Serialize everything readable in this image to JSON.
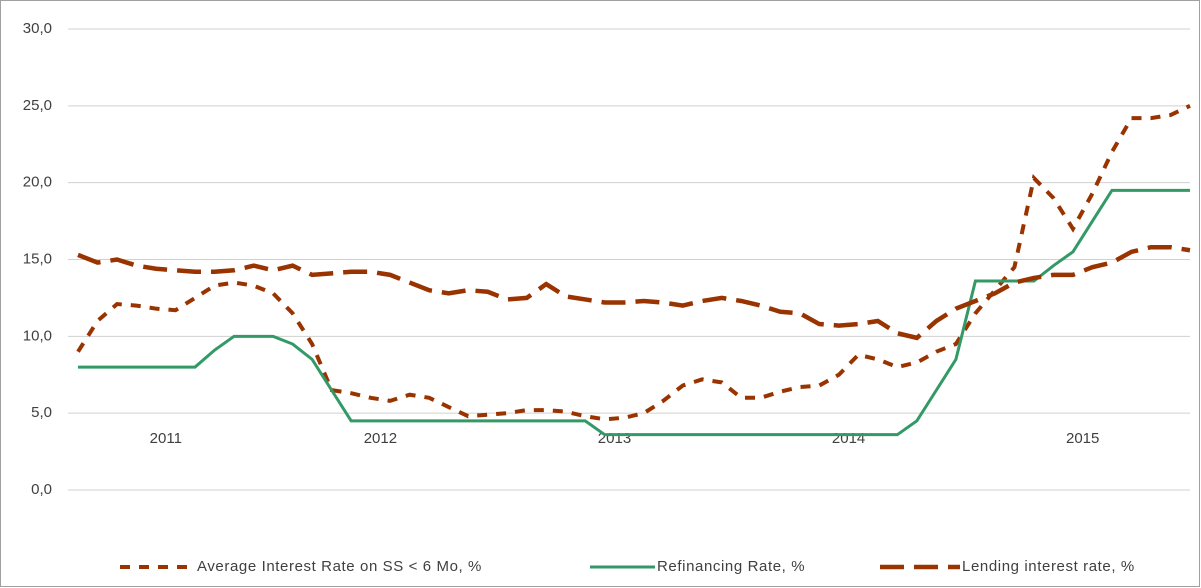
{
  "chart_data": {
    "type": "line",
    "categories": [
      null,
      null,
      null,
      null,
      null,
      null,
      null,
      null,
      null,
      null,
      null,
      null,
      null,
      null,
      null,
      null,
      null,
      null,
      null,
      null,
      null,
      null,
      null,
      null,
      null,
      null,
      null,
      null,
      null,
      null,
      null,
      null,
      null,
      null,
      null,
      null,
      null,
      null,
      null,
      null,
      null,
      null,
      null,
      null,
      null,
      null,
      null,
      null,
      null,
      null,
      null,
      null,
      null,
      null,
      null,
      null,
      null,
      null
    ],
    "x_groups": [
      {
        "label": "2011",
        "size": 10
      },
      {
        "label": "2012",
        "size": 12
      },
      {
        "label": "2013",
        "size": 12
      },
      {
        "label": "2014",
        "size": 12
      },
      {
        "label": "2015",
        "size": 12
      }
    ],
    "ylim": [
      0,
      30
    ],
    "yticks": [
      {
        "value": 0,
        "label": "0,0"
      },
      {
        "value": 5,
        "label": "5,0"
      },
      {
        "value": 10,
        "label": "10,0"
      },
      {
        "value": 15,
        "label": "15,0"
      },
      {
        "value": 20,
        "label": "20,0"
      },
      {
        "value": 25,
        "label": "25,0"
      },
      {
        "value": 30,
        "label": "30,0"
      }
    ],
    "grid": true,
    "legend": "bottom",
    "series": [
      {
        "name": "Average Interest Rate on SS < 6 Mo, %",
        "color": "#993300",
        "dash": "short",
        "values": [
          9.0,
          11.0,
          12.1,
          12.0,
          11.8,
          11.7,
          12.5,
          13.3,
          13.5,
          13.3,
          12.8,
          11.5,
          9.5,
          6.5,
          6.3,
          6.0,
          5.8,
          6.2,
          6.0,
          5.4,
          4.8,
          4.9,
          5.0,
          5.2,
          5.2,
          5.1,
          4.8,
          4.6,
          4.7,
          5.0,
          5.8,
          6.8,
          7.2,
          7.0,
          6.0,
          6.0,
          6.4,
          6.7,
          6.8,
          7.5,
          8.8,
          8.5,
          8.0,
          8.3,
          9.0,
          9.5,
          11.5,
          13.0,
          14.5,
          20.3,
          19.0,
          17.0,
          19.3,
          22.0,
          24.2,
          24.2,
          24.4,
          25.0
        ]
      },
      {
        "name": "Refinancing Rate, %",
        "color": "#339966",
        "dash": "solid",
        "values": [
          8.0,
          8.0,
          8.0,
          8.0,
          8.0,
          8.0,
          8.0,
          9.1,
          10.0,
          10.0,
          10.0,
          9.5,
          8.5,
          6.5,
          4.5,
          4.5,
          4.5,
          4.5,
          4.5,
          4.5,
          4.5,
          4.5,
          4.5,
          4.5,
          4.5,
          4.5,
          4.5,
          3.6,
          3.6,
          3.6,
          3.6,
          3.6,
          3.6,
          3.6,
          3.6,
          3.6,
          3.6,
          3.6,
          3.6,
          3.6,
          3.6,
          3.6,
          3.6,
          4.5,
          6.5,
          8.5,
          13.6,
          13.6,
          13.6,
          13.6,
          14.6,
          15.5,
          17.5,
          19.5,
          19.5,
          19.5,
          19.5,
          19.5
        ]
      },
      {
        "name": "Lending interest rate, %",
        "color": "#993300",
        "dash": "long",
        "values": [
          15.3,
          14.8,
          15.0,
          14.6,
          14.4,
          14.3,
          14.2,
          14.2,
          14.3,
          14.6,
          14.3,
          14.6,
          14.0,
          14.1,
          14.2,
          14.2,
          14.0,
          13.5,
          13.0,
          12.8,
          13.0,
          12.9,
          12.4,
          12.5,
          13.4,
          12.6,
          12.4,
          12.2,
          12.2,
          12.3,
          12.2,
          12.0,
          12.3,
          12.5,
          12.3,
          12.0,
          11.6,
          11.5,
          10.8,
          10.7,
          10.8,
          11.0,
          10.2,
          9.9,
          11.0,
          11.8,
          12.3,
          12.8,
          13.5,
          13.8,
          14.0,
          14.0,
          14.5,
          14.8,
          15.5,
          15.8,
          15.8,
          15.6
        ]
      }
    ]
  }
}
